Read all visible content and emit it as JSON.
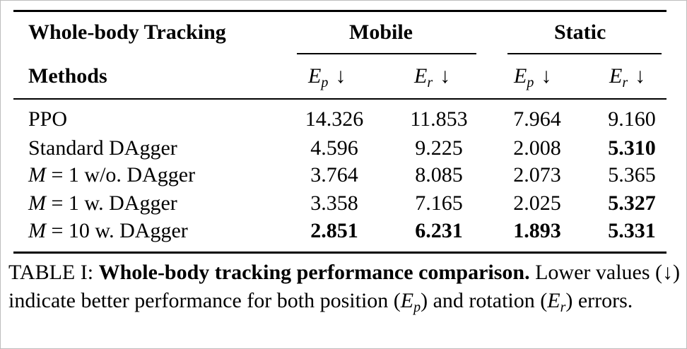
{
  "table": {
    "header": {
      "group_label": "Whole-body Tracking",
      "col_groups": [
        "Mobile",
        "Static"
      ],
      "methods_label": "Methods",
      "metric_symbols": [
        {
          "symbol": "E",
          "sub": "p",
          "arrow": "↓"
        },
        {
          "symbol": "E",
          "sub": "r",
          "arrow": "↓"
        },
        {
          "symbol": "E",
          "sub": "p",
          "arrow": "↓"
        },
        {
          "symbol": "E",
          "sub": "r",
          "arrow": "↓"
        }
      ]
    },
    "rows": [
      {
        "method_plain": "PPO",
        "values": [
          "14.326",
          "11.853",
          "7.964",
          "9.160"
        ],
        "bold": [
          false,
          false,
          false,
          false
        ]
      },
      {
        "method_plain": "Standard DAgger",
        "values": [
          "4.596",
          "9.225",
          "2.008",
          "5.310"
        ],
        "bold": [
          false,
          false,
          false,
          true
        ]
      },
      {
        "method_var": "M",
        "method_eq": " = 1 ",
        "method_rest": "w/o. DAgger",
        "values": [
          "3.764",
          "8.085",
          "2.073",
          "5.365"
        ],
        "bold": [
          false,
          false,
          false,
          false
        ]
      },
      {
        "method_var": "M",
        "method_eq": " = 1 ",
        "method_rest": "w. DAgger",
        "values": [
          "3.358",
          "7.165",
          "2.025",
          "5.327"
        ],
        "bold": [
          false,
          false,
          false,
          true
        ]
      },
      {
        "method_var": "M",
        "method_eq": " = 10 ",
        "method_rest": "w. DAgger",
        "values": [
          "2.851",
          "6.231",
          "1.893",
          "5.331"
        ],
        "bold": [
          true,
          true,
          true,
          true
        ]
      }
    ]
  },
  "caption": {
    "label": "TABLE I:",
    "title": "Whole-body tracking performance comparison.",
    "text_1": "Lower values (↓) indicate better performance for both position (",
    "ep_symbol": "E",
    "ep_sub": "p",
    "text_2": ") and rotation (",
    "er_symbol": "E",
    "er_sub": "r",
    "text_3": ") errors."
  }
}
